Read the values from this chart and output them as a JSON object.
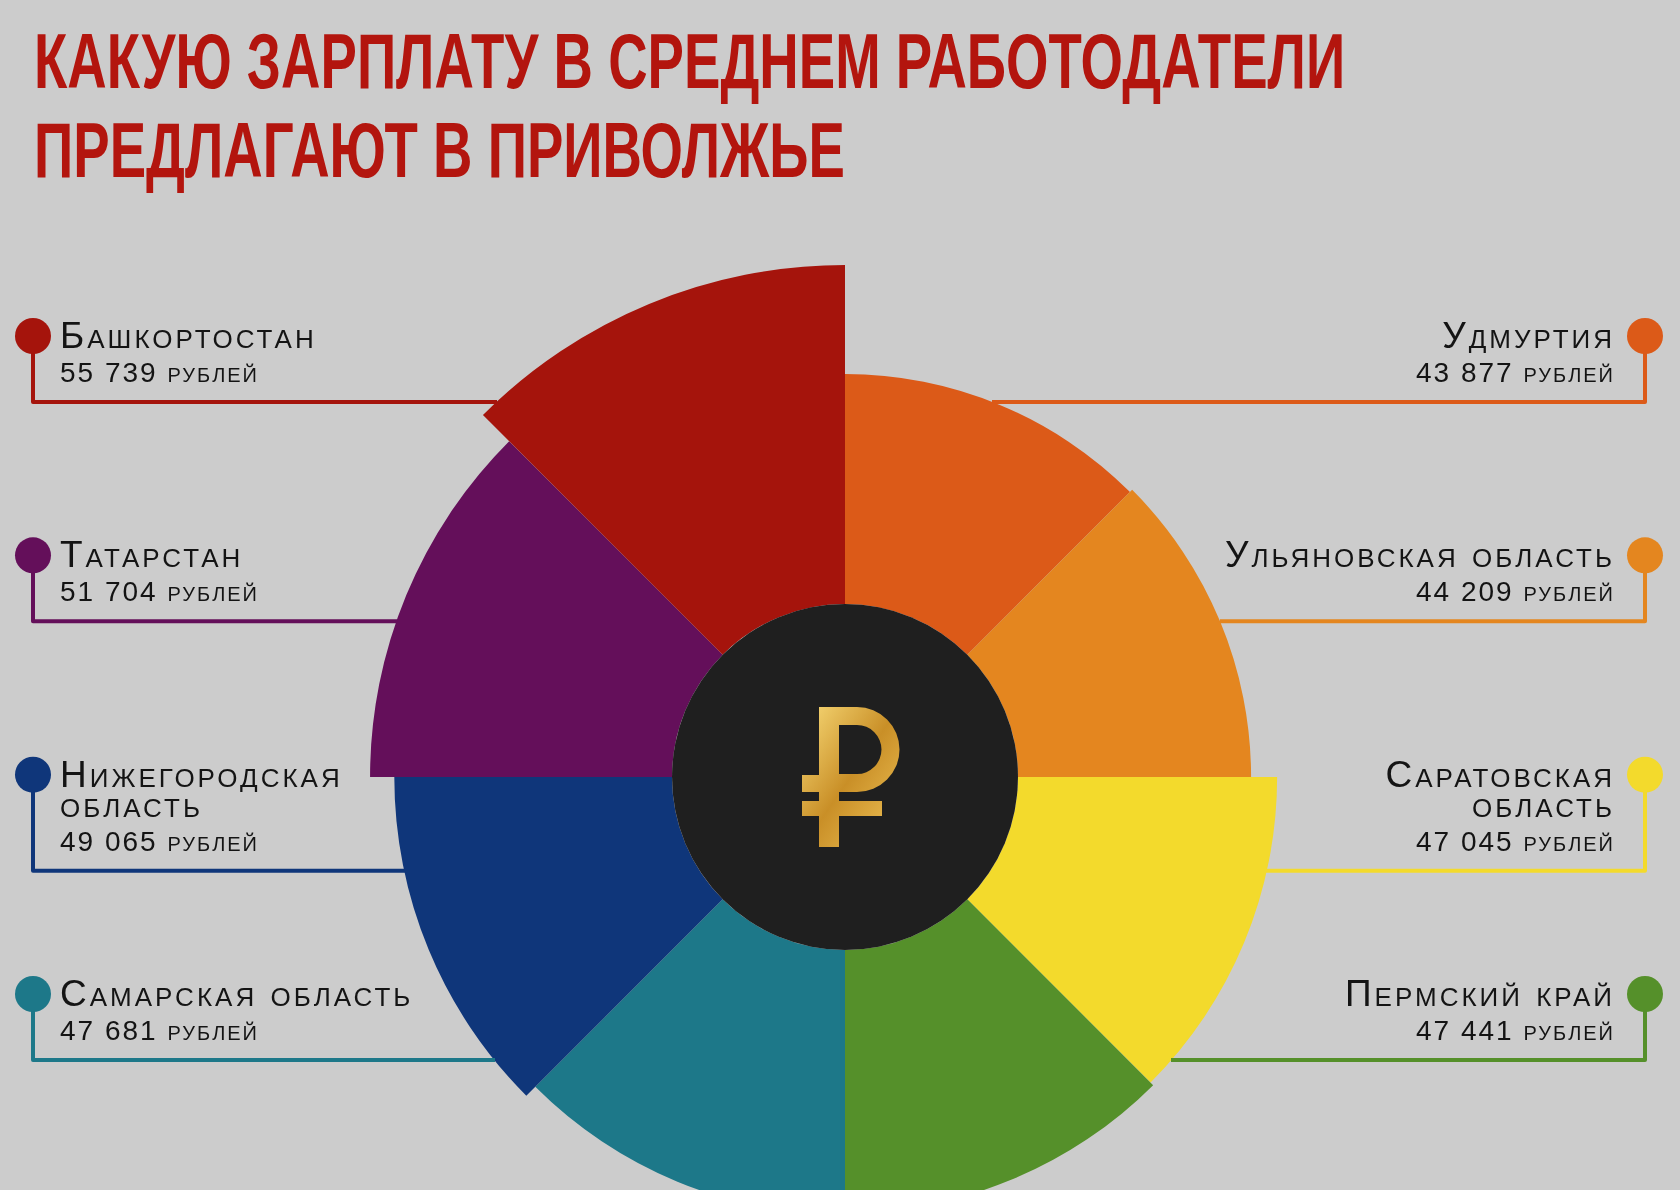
{
  "chart_data": {
    "type": "other",
    "title": "КАКУЮ ЗАРПЛАТУ В СРЕДНЕМ РАБОТОДАТЕЛИ ПРЕДЛАГАЮТ В ПРИВОЛЖЬЕ",
    "categories": [
      "Удмуртия",
      "Ульяновская область",
      "Саратовская область",
      "Пермский край",
      "Самарская область",
      "Нижегородская область",
      "Татарстан",
      "Башкортостан"
    ],
    "values": [
      43877,
      44209,
      47045,
      47441,
      47681,
      49065,
      51704,
      55739
    ],
    "colors": [
      "#dc5a18",
      "#e4861f",
      "#f3da2c",
      "#55902a",
      "#1d7889",
      "#0f367a",
      "#640f5a",
      "#a5140c"
    ],
    "value_labels": [
      "43 877 рублей",
      "44 209 рублей",
      "47 045 рублей",
      "47 441 рублей",
      "47 681 рублей",
      "49 065 рублей",
      "51 704 рублей",
      "55 739 рублей"
    ]
  }
}
